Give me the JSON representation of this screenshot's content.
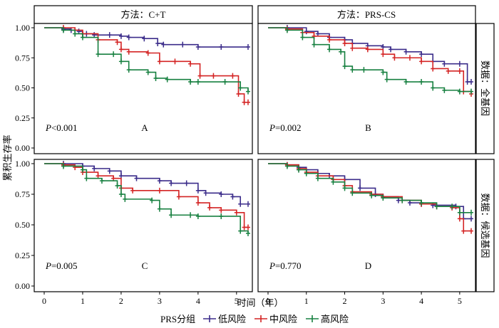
{
  "strips": {
    "col": [
      "方法：C+T",
      "方法：PRS-CS"
    ],
    "row": [
      "数据：全基因",
      "数据：候选基因"
    ]
  },
  "axis": {
    "ylabel": "累积生存率",
    "xlabel": "时间（年）",
    "xticks": [
      "0",
      "1",
      "2",
      "3",
      "4",
      "5"
    ],
    "yticks": [
      "0.00",
      "0.25",
      "0.50",
      "0.75",
      "1.00"
    ]
  },
  "legend": {
    "title": "PRS分组",
    "items": [
      "低风险",
      "中风险",
      "高风险"
    ]
  },
  "colors": {
    "low": "#3B2C8A",
    "mid": "#D42424",
    "high": "#178040"
  },
  "chart_data": [
    {
      "type": "line",
      "panel": "A",
      "pvalue": "P<0.001",
      "xlim": [
        0,
        5.3
      ],
      "ylim": [
        0,
        1
      ],
      "series": [
        {
          "name": "低风险",
          "x": [
            0,
            0.5,
            0.7,
            0.9,
            1.0,
            1.1,
            1.3,
            1.7,
            2.0,
            2.2,
            2.6,
            2.95,
            3.1,
            3.6,
            4.0,
            4.6,
            5.3
          ],
          "y": [
            1.0,
            0.99,
            0.98,
            0.97,
            0.95,
            0.95,
            0.94,
            0.94,
            0.93,
            0.92,
            0.91,
            0.87,
            0.86,
            0.86,
            0.84,
            0.84,
            0.84
          ]
        },
        {
          "name": "中风险",
          "x": [
            0,
            0.5,
            0.8,
            1.0,
            1.4,
            1.9,
            2.0,
            2.2,
            2.7,
            3.0,
            3.4,
            3.8,
            4.05,
            4.4,
            4.9,
            5.05,
            5.2,
            5.3
          ],
          "y": [
            1.0,
            1.0,
            0.98,
            0.95,
            0.9,
            0.88,
            0.82,
            0.8,
            0.79,
            0.72,
            0.72,
            0.7,
            0.6,
            0.6,
            0.6,
            0.45,
            0.38,
            0.38
          ]
        },
        {
          "name": "高风险",
          "x": [
            0,
            0.5,
            0.8,
            1.0,
            1.4,
            1.8,
            2.0,
            2.2,
            2.7,
            2.9,
            3.2,
            3.8,
            4.0,
            4.7,
            5.1,
            5.3
          ],
          "y": [
            1.0,
            0.98,
            0.95,
            0.92,
            0.78,
            0.78,
            0.72,
            0.65,
            0.63,
            0.58,
            0.57,
            0.55,
            0.55,
            0.55,
            0.5,
            0.47
          ]
        }
      ]
    },
    {
      "type": "line",
      "panel": "B",
      "pvalue": "P=0.002",
      "xlim": [
        0,
        5.3
      ],
      "ylim": [
        0,
        1
      ],
      "series": [
        {
          "name": "低风险",
          "x": [
            0,
            0.5,
            1.0,
            1.3,
            1.6,
            2.0,
            2.2,
            2.6,
            3.0,
            3.2,
            3.6,
            4.0,
            4.3,
            4.6,
            5.0,
            5.2,
            5.3
          ],
          "y": [
            1.0,
            1.0,
            0.97,
            0.95,
            0.92,
            0.9,
            0.87,
            0.85,
            0.84,
            0.82,
            0.8,
            0.78,
            0.72,
            0.7,
            0.7,
            0.55,
            0.55
          ]
        },
        {
          "name": "中风险",
          "x": [
            0,
            0.5,
            0.9,
            1.2,
            1.6,
            2.0,
            2.2,
            2.6,
            3.0,
            3.3,
            3.7,
            4.0,
            4.3,
            4.7,
            5.0,
            5.1,
            5.3
          ],
          "y": [
            1.0,
            0.99,
            0.96,
            0.93,
            0.9,
            0.87,
            0.83,
            0.82,
            0.78,
            0.75,
            0.75,
            0.72,
            0.66,
            0.64,
            0.64,
            0.47,
            0.45
          ]
        },
        {
          "name": "高风险",
          "x": [
            0,
            0.5,
            0.9,
            1.2,
            1.6,
            1.9,
            2.0,
            2.2,
            2.5,
            3.0,
            3.1,
            3.6,
            4.0,
            4.3,
            4.6,
            5.0,
            5.3
          ],
          "y": [
            1.0,
            0.98,
            0.92,
            0.86,
            0.82,
            0.8,
            0.68,
            0.65,
            0.65,
            0.63,
            0.57,
            0.55,
            0.55,
            0.5,
            0.48,
            0.47,
            0.47
          ]
        }
      ]
    },
    {
      "type": "line",
      "panel": "C",
      "pvalue": "P=0.005",
      "xlim": [
        0,
        5.3
      ],
      "ylim": [
        0,
        1
      ],
      "series": [
        {
          "name": "低风险",
          "x": [
            0,
            0.5,
            1.0,
            1.3,
            1.7,
            2.0,
            2.4,
            3.0,
            3.3,
            3.7,
            4.0,
            4.2,
            4.6,
            4.9,
            5.1,
            5.3
          ],
          "y": [
            1.0,
            1.0,
            0.98,
            0.96,
            0.94,
            0.9,
            0.88,
            0.86,
            0.84,
            0.84,
            0.78,
            0.76,
            0.75,
            0.73,
            0.67,
            0.67
          ]
        },
        {
          "name": "中风险",
          "x": [
            0,
            0.5,
            0.8,
            1.0,
            1.4,
            1.8,
            2.0,
            2.3,
            3.0,
            3.5,
            4.0,
            4.3,
            4.6,
            5.0,
            5.2,
            5.3
          ],
          "y": [
            1.0,
            0.99,
            0.97,
            0.93,
            0.9,
            0.88,
            0.8,
            0.78,
            0.78,
            0.73,
            0.68,
            0.64,
            0.62,
            0.6,
            0.48,
            0.48
          ]
        },
        {
          "name": "高风险",
          "x": [
            0,
            0.5,
            1.0,
            1.1,
            1.5,
            1.9,
            2.0,
            2.1,
            2.8,
            3.0,
            3.3,
            3.8,
            4.0,
            4.6,
            5.1,
            5.3
          ],
          "y": [
            1.0,
            0.98,
            0.95,
            0.88,
            0.86,
            0.82,
            0.75,
            0.71,
            0.7,
            0.63,
            0.58,
            0.58,
            0.57,
            0.57,
            0.45,
            0.43
          ]
        }
      ]
    },
    {
      "type": "line",
      "panel": "D",
      "pvalue": "P=0.770",
      "xlim": [
        0,
        5.3
      ],
      "ylim": [
        0,
        1
      ],
      "series": [
        {
          "name": "低风险",
          "x": [
            0,
            0.5,
            0.8,
            1.0,
            1.3,
            1.6,
            2.0,
            2.4,
            2.8,
            3.0,
            3.4,
            3.7,
            4.0,
            4.3,
            4.9,
            5.1,
            5.3
          ],
          "y": [
            1.0,
            0.99,
            0.97,
            0.95,
            0.92,
            0.9,
            0.87,
            0.8,
            0.75,
            0.73,
            0.7,
            0.68,
            0.67,
            0.66,
            0.65,
            0.55,
            0.55
          ]
        },
        {
          "name": "中风险",
          "x": [
            0,
            0.5,
            0.8,
            1.0,
            1.3,
            1.7,
            2.0,
            2.2,
            2.7,
            3.0,
            3.5,
            4.0,
            4.4,
            4.8,
            5.0,
            5.1,
            5.3
          ],
          "y": [
            1.0,
            0.99,
            0.96,
            0.93,
            0.9,
            0.87,
            0.82,
            0.77,
            0.75,
            0.73,
            0.7,
            0.67,
            0.65,
            0.64,
            0.55,
            0.45,
            0.45
          ]
        },
        {
          "name": "高风险",
          "x": [
            0,
            0.5,
            0.8,
            1.0,
            1.3,
            1.7,
            2.0,
            2.2,
            2.7,
            3.0,
            3.5,
            4.0,
            4.4,
            4.8,
            5.0,
            5.3
          ],
          "y": [
            1.0,
            0.98,
            0.95,
            0.92,
            0.88,
            0.85,
            0.8,
            0.76,
            0.74,
            0.72,
            0.7,
            0.68,
            0.65,
            0.65,
            0.6,
            0.6
          ]
        }
      ]
    }
  ]
}
